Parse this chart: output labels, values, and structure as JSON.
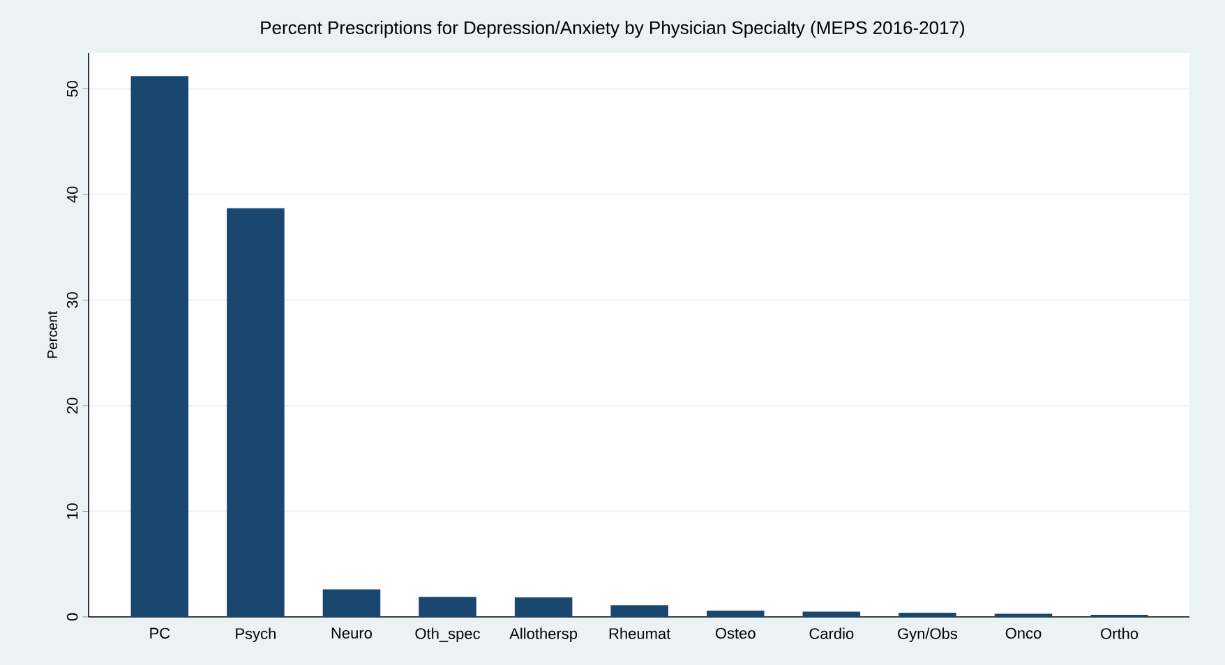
{
  "chart_data": {
    "type": "bar",
    "title": "Percent Prescriptions for Depression/Anxiety by Physician Specialty (MEPS 2016-2017)",
    "ylabel": "Percent",
    "categories": [
      "PC",
      "Psych",
      "Neuro",
      "Oth_spec",
      "Allothersp",
      "Rheumat",
      "Osteo",
      "Cardio",
      "Gyn/Obs",
      "Onco",
      "Ortho"
    ],
    "values": [
      51.2,
      38.7,
      2.6,
      1.9,
      1.85,
      1.1,
      0.6,
      0.5,
      0.4,
      0.3,
      0.2
    ],
    "color": "#1a476f",
    "ylim": [
      0,
      53.4
    ],
    "yticks": [
      0,
      10,
      20,
      30,
      40,
      50
    ],
    "grid": "y"
  }
}
